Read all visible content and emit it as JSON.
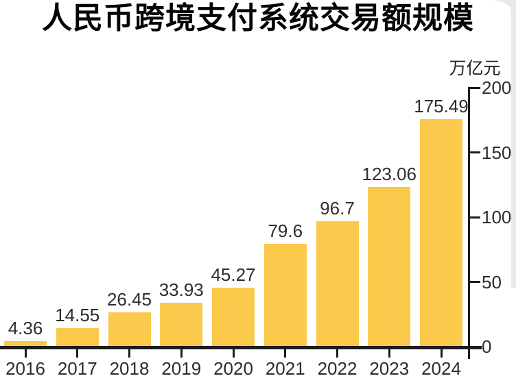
{
  "chart_data": {
    "type": "bar",
    "title": "人民币跨境支付系统交易额规模",
    "unit_label": "万亿元",
    "categories": [
      "2016",
      "2017",
      "2018",
      "2019",
      "2020",
      "2021",
      "2022",
      "2023",
      "2024"
    ],
    "values": [
      4.36,
      14.55,
      26.45,
      33.93,
      45.27,
      79.6,
      96.7,
      123.06,
      175.49
    ],
    "value_labels": [
      "4.36",
      "14.55",
      "26.45",
      "33.93",
      "45.27",
      "79.6",
      "96.7",
      "123.06",
      "175.49"
    ],
    "yticks": [
      0,
      50,
      100,
      150,
      200
    ],
    "ytick_labels": [
      "0",
      "50",
      "100",
      "150",
      "200"
    ],
    "ylim": [
      0,
      200
    ],
    "y_axis_side": "right",
    "grid": false,
    "legend_position": "none",
    "xlabel": "",
    "ylabel": "万亿元",
    "colors": {
      "bar": "#FBCA4D",
      "axis": "#1c1c1c",
      "labels": "#2d2d2d",
      "title": "#050505",
      "background": "#ffffff",
      "edge_artifact": "#e8e8e8"
    }
  }
}
